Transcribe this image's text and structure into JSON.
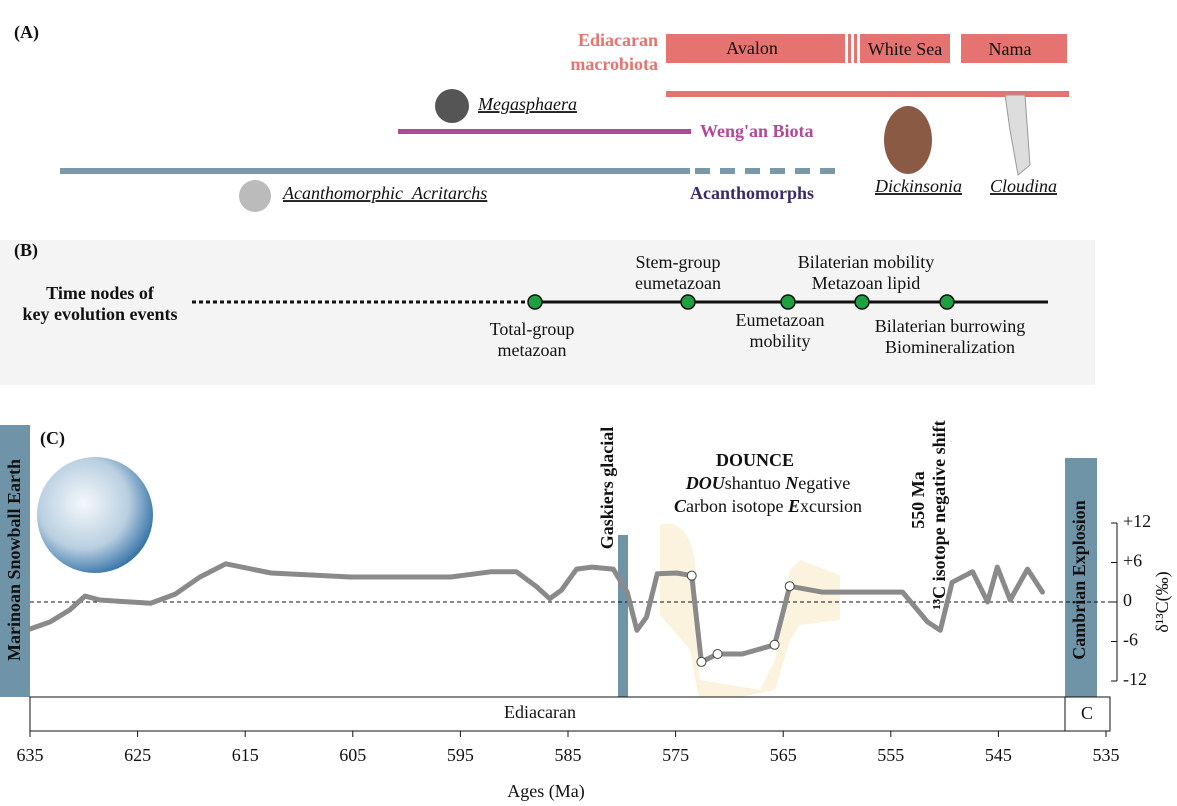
{
  "panel_a": {
    "label": "(A)",
    "macrobiota": [
      "Ediacaran",
      "macrobiota"
    ],
    "assemblages": [
      "Avalon",
      "White Sea",
      "Nama"
    ],
    "megasphaera": "Megasphaera",
    "wengan": "Weng'an Biota",
    "acritarchs": "Acanthomorphic_Acritarchs",
    "acanthomorphs": "Acanthomorphs",
    "dickinsonia": "Dickinsonia",
    "cloudina": "Cloudina"
  },
  "panel_b": {
    "label": "(B)",
    "title": [
      "Time nodes of",
      "key evolution events"
    ],
    "above": [
      [
        "Stem-group",
        "eumetazoan"
      ],
      [
        "Bilaterian mobility",
        "Metazoan lipid"
      ]
    ],
    "below": [
      [
        "Total-group",
        "metazoan"
      ],
      [
        "Eumetazoan",
        "mobility"
      ],
      [
        "Bilaterian burrowing",
        "Biomineralization"
      ]
    ]
  },
  "panel_c": {
    "label": "(C)",
    "marinoan": "Marinoan Snowball Earth",
    "gaskiers": "Gaskiers glacial",
    "cambrian": "Cambrian Explosion",
    "dounce": {
      "title": "DOUNCE",
      "line1": [
        "DOU",
        "shantuo ",
        "N",
        "egative"
      ],
      "line2": [
        "C",
        "arbon isotope ",
        "E",
        "xcursion"
      ]
    },
    "shift": [
      "550 Ma",
      "¹³C isotope negative shift"
    ],
    "periods": [
      "Ediacaran",
      "C"
    ]
  },
  "chart_data": {
    "type": "line",
    "xlabel": "Ages (Ma)",
    "ylabel": "δ¹³C(‰)",
    "color": "#8a8a8a",
    "x": [
      635,
      633.1,
      631.3,
      629.9,
      628.5,
      623.8,
      621.5,
      619.2,
      616.8,
      612.6,
      605.2,
      595.9,
      592.1,
      589.8,
      587.9,
      586.7,
      585.6,
      584.2,
      582.8,
      580.8,
      579.5,
      578.6,
      577.7,
      576.7,
      574.9,
      573.5,
      572.6,
      571.1,
      568.8,
      565.8,
      564.4,
      561.4,
      553.9,
      551.6,
      550.4,
      549.3,
      547.4,
      546,
      545.1,
      543.9,
      542.3,
      540.9
    ],
    "values": [
      -4.1,
      -3,
      -1.2,
      0.9,
      0.3,
      -0.2,
      1.2,
      3.8,
      5.8,
      4.4,
      3.8,
      3.8,
      4.6,
      4.6,
      2.3,
      0.5,
      1.8,
      5,
      5.3,
      5,
      1.5,
      -4.3,
      -2.3,
      4.3,
      4.4,
      4,
      -9.1,
      -7.9,
      -7.9,
      -6.5,
      2.4,
      1.5,
      1.5,
      -3,
      -4.3,
      3,
      4.6,
      0,
      5.3,
      0.3,
      5,
      1.5
    ],
    "markers": {
      "x": [
        573.5,
        572.6,
        571.1,
        565.8,
        564.4
      ],
      "values": [
        4,
        -9.1,
        -7.9,
        -6.5,
        2.4
      ]
    },
    "xlim": [
      635,
      535
    ],
    "xticks": [
      635,
      625,
      615,
      605,
      595,
      585,
      575,
      565,
      555,
      545,
      535
    ],
    "ylim": [
      -12,
      12
    ],
    "yticks": [
      {
        "value": 12,
        "label": "+12"
      },
      {
        "value": 6,
        "label": "+6"
      },
      0,
      -6,
      -12
    ]
  }
}
